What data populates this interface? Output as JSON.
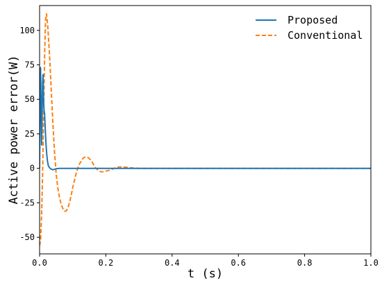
{
  "chart_data": {
    "type": "line",
    "title": "",
    "xlabel": "t (s)",
    "ylabel": "Active power error(W)",
    "xlim": [
      0.0,
      1.0
    ],
    "ylim": [
      -62,
      118
    ],
    "x_ticks": [
      0.0,
      0.2,
      0.4,
      0.6,
      0.8,
      1.0
    ],
    "x_tick_labels": [
      "0.0",
      "0.2",
      "0.4",
      "0.6",
      "0.8",
      "1.0"
    ],
    "y_ticks": [
      -50,
      -25,
      0,
      25,
      50,
      75,
      100
    ],
    "y_tick_labels": [
      "-50",
      "-25",
      "0",
      "25",
      "50",
      "75",
      "100"
    ],
    "grid": false,
    "legend_position": "top-right",
    "series": [
      {
        "name": "Proposed",
        "color": "#1f77b4",
        "style": "solid",
        "x": [
          0.0,
          0.0015,
          0.003,
          0.0045,
          0.006,
          0.0075,
          0.009,
          0.0105,
          0.012,
          0.0135,
          0.015,
          0.0165,
          0.018,
          0.0195,
          0.021,
          0.0225,
          0.024,
          0.0255,
          0.027,
          0.03,
          0.034,
          0.04,
          0.05,
          0.06,
          0.08,
          0.1,
          0.2,
          0.4,
          0.6,
          0.8,
          1.0
        ],
        "values": [
          0,
          60,
          73,
          45,
          17,
          35,
          62,
          68,
          50,
          42,
          40,
          32,
          24,
          17,
          12,
          8,
          5,
          3,
          1.5,
          0.5,
          -0.5,
          -1,
          -0.3,
          0,
          0,
          0,
          0,
          0,
          0,
          0,
          0
        ]
      },
      {
        "name": "Conventional",
        "color": "#ff7f0e",
        "style": "dashed",
        "x": [
          0.0,
          0.003,
          0.006,
          0.009,
          0.012,
          0.015,
          0.018,
          0.021,
          0.025,
          0.03,
          0.035,
          0.04,
          0.045,
          0.05,
          0.055,
          0.06,
          0.065,
          0.07,
          0.075,
          0.08,
          0.085,
          0.09,
          0.095,
          0.1,
          0.105,
          0.11,
          0.115,
          0.12,
          0.125,
          0.13,
          0.135,
          0.14,
          0.145,
          0.15,
          0.155,
          0.16,
          0.165,
          0.17,
          0.175,
          0.18,
          0.185,
          0.19,
          0.195,
          0.2,
          0.21,
          0.22,
          0.23,
          0.24,
          0.25,
          0.26,
          0.27,
          0.28,
          0.3,
          0.35,
          0.4,
          0.6,
          0.8,
          1.0
        ],
        "values": [
          -56,
          -52,
          -35,
          -5,
          35,
          80,
          108,
          112,
          102,
          82,
          58,
          33,
          12,
          -4,
          -14,
          -21,
          -26,
          -29,
          -31,
          -31,
          -29,
          -25,
          -20,
          -14,
          -9,
          -4,
          0,
          3,
          5,
          7,
          8,
          8,
          8,
          7,
          6,
          4,
          2,
          0,
          -1,
          -2,
          -2.5,
          -2.5,
          -2.5,
          -2,
          -1.5,
          -0.5,
          0.5,
          1,
          1,
          0.8,
          0.5,
          0.3,
          0,
          0,
          0,
          0,
          0,
          0
        ]
      }
    ]
  }
}
